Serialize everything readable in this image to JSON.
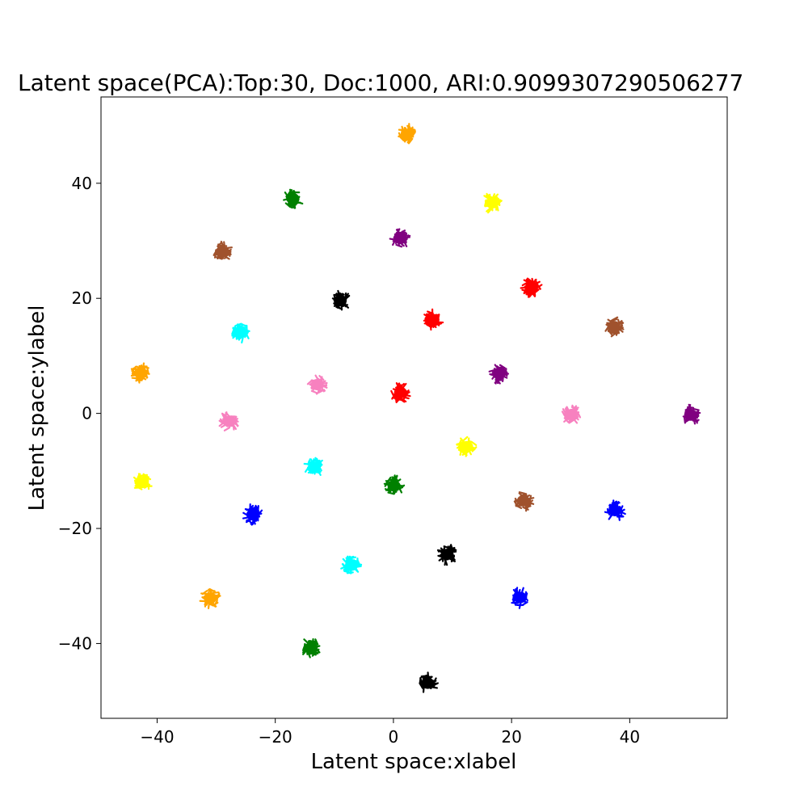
{
  "chart_data": {
    "type": "scatter",
    "title": "Latent space(PCA):Top:30, Doc:1000, ARI:0.9099307290506277",
    "xlabel": "Latent space:xlabel",
    "ylabel": "Latent space:ylabel",
    "xlim": [
      -49.5,
      56.5
    ],
    "ylim": [
      -53,
      55
    ],
    "xticks": [
      -40,
      -20,
      0,
      20,
      40
    ],
    "yticks": [
      -40,
      -20,
      0,
      20,
      40
    ],
    "grid": false,
    "clusters": [
      {
        "x": 2.3,
        "y": 48.5,
        "color": "#FFA500"
      },
      {
        "x": -17.0,
        "y": 37.3,
        "color": "#008000"
      },
      {
        "x": 16.7,
        "y": 36.6,
        "color": "#FFFF00"
      },
      {
        "x": 1.2,
        "y": 30.4,
        "color": "#800080"
      },
      {
        "x": -29.0,
        "y": 28.1,
        "color": "#A0522D"
      },
      {
        "x": 23.4,
        "y": 22.0,
        "color": "#FF0000"
      },
      {
        "x": -9.0,
        "y": 19.6,
        "color": "#000000"
      },
      {
        "x": 6.7,
        "y": 16.3,
        "color": "#FF0000"
      },
      {
        "x": 37.3,
        "y": 15.1,
        "color": "#A0522D"
      },
      {
        "x": -25.9,
        "y": 14.1,
        "color": "#00FFFF"
      },
      {
        "x": -42.8,
        "y": 7.0,
        "color": "#FFA500"
      },
      {
        "x": 17.9,
        "y": 6.9,
        "color": "#800080"
      },
      {
        "x": -12.9,
        "y": 5.0,
        "color": "#F781BF"
      },
      {
        "x": 1.2,
        "y": 3.6,
        "color": "#FF0000"
      },
      {
        "x": 30.2,
        "y": -0.2,
        "color": "#F781BF"
      },
      {
        "x": 50.3,
        "y": -0.3,
        "color": "#800080"
      },
      {
        "x": -27.8,
        "y": -1.4,
        "color": "#F781BF"
      },
      {
        "x": 12.4,
        "y": -5.8,
        "color": "#FFFF00"
      },
      {
        "x": -13.4,
        "y": -9.4,
        "color": "#00FFFF"
      },
      {
        "x": -42.5,
        "y": -12.0,
        "color": "#FFFF00"
      },
      {
        "x": 0.1,
        "y": -12.6,
        "color": "#008000"
      },
      {
        "x": 22.0,
        "y": -15.2,
        "color": "#A0522D"
      },
      {
        "x": 37.5,
        "y": -16.9,
        "color": "#0000FF"
      },
      {
        "x": -23.8,
        "y": -17.6,
        "color": "#0000FF"
      },
      {
        "x": 9.1,
        "y": -24.5,
        "color": "#000000"
      },
      {
        "x": -7.1,
        "y": -26.4,
        "color": "#00FFFF"
      },
      {
        "x": -31.0,
        "y": -32.1,
        "color": "#FFA500"
      },
      {
        "x": 21.5,
        "y": -32.0,
        "color": "#0000FF"
      },
      {
        "x": -13.9,
        "y": -40.7,
        "color": "#008000"
      },
      {
        "x": 5.8,
        "y": -46.9,
        "color": "#000000"
      }
    ]
  }
}
